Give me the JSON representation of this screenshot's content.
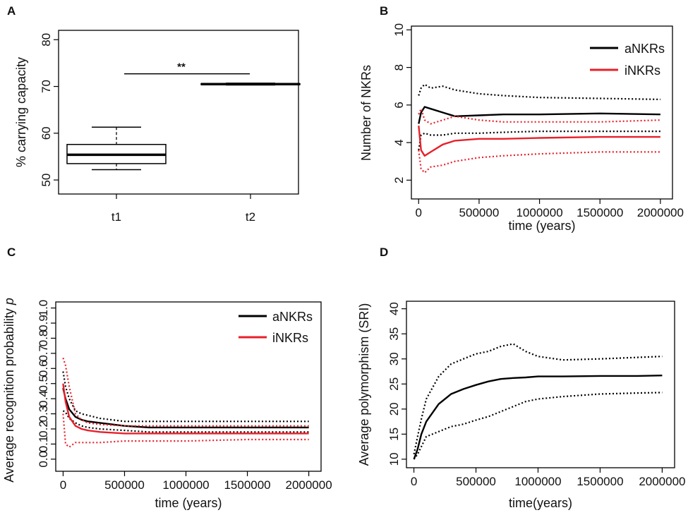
{
  "chart_data": [
    {
      "panel": "A",
      "type": "box",
      "ylabel": "% carrying capacity",
      "ylim": [
        47,
        82
      ],
      "yticks": [
        "50",
        "60",
        "70",
        "80"
      ],
      "ytick_values": [
        50,
        60,
        70,
        80
      ],
      "categories": [
        "t1",
        "t2"
      ],
      "boxes": [
        {
          "name": "t1",
          "whisker_low": 52.2,
          "q1": 53.5,
          "median": 55.4,
          "q3": 57.6,
          "whisker_high": 61.3
        },
        {
          "name": "t2",
          "whisker_low": 70.3,
          "q1": 70.4,
          "median": 70.5,
          "q3": 70.6,
          "whisker_high": 70.7
        }
      ],
      "significance": {
        "label": "**",
        "y": 72.7
      }
    },
    {
      "panel": "B",
      "type": "line",
      "ylabel": "Number of NKRs",
      "xlabel": "time (years)",
      "xlim": [
        -60000,
        2100000
      ],
      "ylim": [
        1.0,
        10.2
      ],
      "xticks": [
        "0",
        "500000",
        "1000000",
        "1500000",
        "2000000"
      ],
      "xtick_values": [
        0,
        500000,
        1000000,
        1500000,
        2000000
      ],
      "yticks": [
        "2",
        "4",
        "6",
        "8",
        "10"
      ],
      "ytick_values": [
        2,
        4,
        6,
        8,
        10
      ],
      "legend": {
        "position": "top-right",
        "entries": [
          {
            "label": "aNKRs",
            "color": "#000000"
          },
          {
            "label": "iNKRs",
            "color": "#e8202a"
          }
        ]
      },
      "x": [
        0,
        20000,
        50000,
        100000,
        200000,
        300000,
        500000,
        700000,
        1000000,
        1500000,
        2000000
      ],
      "series": [
        {
          "name": "aNKRs mean",
          "color": "#000000",
          "style": "solid",
          "values": [
            5.0,
            5.6,
            5.9,
            5.8,
            5.6,
            5.4,
            5.45,
            5.5,
            5.5,
            5.55,
            5.5
          ]
        },
        {
          "name": "aNKRs upper",
          "color": "#000000",
          "style": "dotted",
          "values": [
            6.5,
            6.9,
            7.1,
            6.9,
            7.0,
            6.8,
            6.6,
            6.5,
            6.4,
            6.35,
            6.3
          ]
        },
        {
          "name": "aNKRs lower",
          "color": "#000000",
          "style": "dotted",
          "values": [
            3.6,
            4.4,
            4.5,
            4.4,
            4.4,
            4.5,
            4.5,
            4.55,
            4.6,
            4.6,
            4.6
          ]
        },
        {
          "name": "iNKRs mean",
          "color": "#e8202a",
          "style": "solid",
          "values": [
            4.9,
            3.6,
            3.3,
            3.5,
            3.9,
            4.1,
            4.2,
            4.2,
            4.25,
            4.3,
            4.3
          ]
        },
        {
          "name": "iNKRs upper",
          "color": "#e8202a",
          "style": "dotted",
          "values": [
            5.5,
            5.8,
            5.2,
            5.0,
            5.2,
            5.4,
            5.2,
            5.1,
            5.1,
            5.1,
            5.2
          ]
        },
        {
          "name": "iNKRs lower",
          "color": "#e8202a",
          "style": "dotted",
          "values": [
            3.6,
            2.6,
            2.4,
            2.7,
            2.8,
            3.0,
            3.2,
            3.3,
            3.4,
            3.5,
            3.5
          ]
        }
      ]
    },
    {
      "panel": "C",
      "type": "line",
      "ylabel": "Average recognition probability p",
      "ylabel_main": "Average recognition probability",
      "ylabel_italic": "p",
      "xlabel": "time (years)",
      "xlim": [
        -60000,
        2100000
      ],
      "ylim": [
        -0.08,
        1.04
      ],
      "xticks": [
        "0",
        "500000",
        "1000000",
        "1500000",
        "2000000"
      ],
      "xtick_values": [
        0,
        500000,
        1000000,
        1500000,
        2000000
      ],
      "yticks": [
        "0.0",
        "0.1",
        "0.2",
        "0.3",
        "0.4",
        "0.5",
        "0.6",
        "0.7",
        "0.8",
        "0.9",
        "1.0"
      ],
      "ytick_values": [
        0.0,
        0.1,
        0.2,
        0.3,
        0.4,
        0.5,
        0.6,
        0.7,
        0.8,
        0.9,
        1.0
      ],
      "legend": {
        "position": "top-right",
        "entries": [
          {
            "label": "aNKRs",
            "color": "#000000"
          },
          {
            "label": "iNKRs",
            "color": "#e8202a"
          }
        ]
      },
      "x": [
        0,
        20000,
        50000,
        100000,
        150000,
        200000,
        300000,
        500000,
        700000,
        1000000,
        1500000,
        2000000
      ],
      "series": [
        {
          "name": "aNKRs mean",
          "color": "#000000",
          "style": "solid",
          "values": [
            0.47,
            0.4,
            0.33,
            0.28,
            0.26,
            0.25,
            0.24,
            0.22,
            0.21,
            0.21,
            0.21,
            0.21
          ]
        },
        {
          "name": "aNKRs upper",
          "color": "#000000",
          "style": "dotted",
          "values": [
            0.58,
            0.48,
            0.4,
            0.32,
            0.3,
            0.29,
            0.27,
            0.25,
            0.25,
            0.25,
            0.25,
            0.25
          ]
        },
        {
          "name": "aNKRs lower",
          "color": "#000000",
          "style": "dotted",
          "values": [
            0.32,
            0.31,
            0.27,
            0.24,
            0.22,
            0.21,
            0.2,
            0.19,
            0.18,
            0.18,
            0.18,
            0.18
          ]
        },
        {
          "name": "iNKRs mean",
          "color": "#e8202a",
          "style": "solid",
          "values": [
            0.5,
            0.38,
            0.28,
            0.22,
            0.2,
            0.19,
            0.18,
            0.17,
            0.17,
            0.17,
            0.17,
            0.17
          ]
        },
        {
          "name": "iNKRs upper",
          "color": "#e8202a",
          "style": "dotted",
          "values": [
            0.67,
            0.62,
            0.48,
            0.3,
            0.26,
            0.24,
            0.23,
            0.22,
            0.22,
            0.22,
            0.22,
            0.22
          ]
        },
        {
          "name": "iNKRs lower",
          "color": "#e8202a",
          "style": "dotted",
          "values": [
            0.3,
            0.1,
            0.08,
            0.11,
            0.11,
            0.11,
            0.11,
            0.12,
            0.12,
            0.12,
            0.13,
            0.13
          ]
        }
      ]
    },
    {
      "panel": "D",
      "type": "line",
      "ylabel": "Average polymorphism (SRI)",
      "xlabel": "time(years)",
      "xlim": [
        -60000,
        2100000
      ],
      "ylim": [
        8.3,
        41.5
      ],
      "xticks": [
        "0",
        "500000",
        "1000000",
        "1500000",
        "2000000"
      ],
      "xtick_values": [
        0,
        500000,
        1000000,
        1500000,
        2000000
      ],
      "yticks": [
        "10",
        "15",
        "20",
        "25",
        "30",
        "35",
        "40"
      ],
      "ytick_values": [
        10,
        15,
        20,
        25,
        30,
        35,
        40
      ],
      "x": [
        0,
        30000,
        60000,
        100000,
        200000,
        300000,
        400000,
        500000,
        600000,
        700000,
        800000,
        900000,
        1000000,
        1200000,
        1500000,
        1800000,
        2000000
      ],
      "series": [
        {
          "name": "mean",
          "color": "#000000",
          "style": "solid",
          "values": [
            10.0,
            12.0,
            15.0,
            17.5,
            21.0,
            23.0,
            24.0,
            24.8,
            25.5,
            26.0,
            26.2,
            26.3,
            26.5,
            26.5,
            26.6,
            26.6,
            26.7
          ]
        },
        {
          "name": "upper",
          "color": "#000000",
          "style": "dotted",
          "values": [
            11.0,
            14.5,
            18.0,
            22.0,
            26.5,
            29.0,
            30.0,
            31.0,
            31.5,
            32.5,
            33.0,
            31.5,
            30.5,
            29.8,
            30.0,
            30.3,
            30.5
          ]
        },
        {
          "name": "lower",
          "color": "#000000",
          "style": "dotted",
          "values": [
            10.0,
            11.0,
            12.5,
            14.5,
            15.5,
            16.5,
            17.0,
            17.8,
            18.5,
            19.5,
            20.5,
            21.5,
            22.0,
            22.5,
            23.0,
            23.2,
            23.3
          ]
        }
      ]
    }
  ]
}
